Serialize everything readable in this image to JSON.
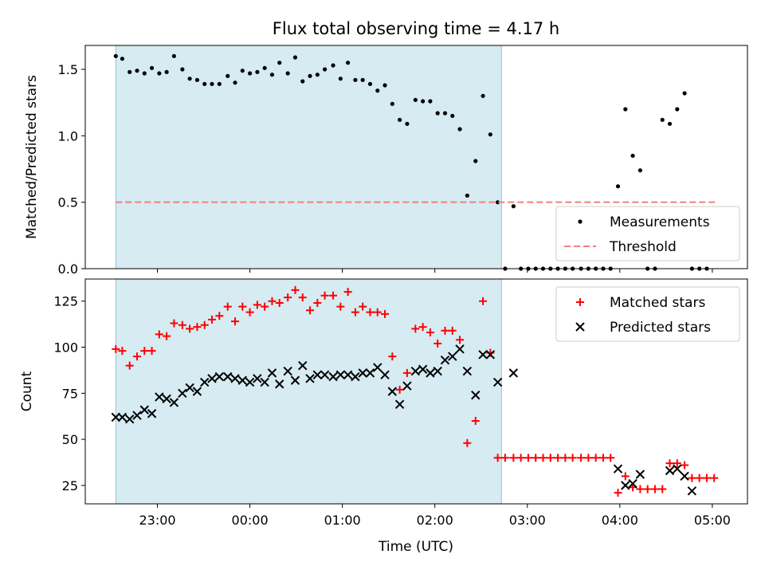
{
  "chart_data": {
    "title": "Flux total observing time = 4.17 h",
    "xlabel": "Time (UTC)",
    "x_unit": "hours after 00:00 UTC",
    "x_ticks": [
      {
        "value": -1,
        "label": "23:00"
      },
      {
        "value": 0,
        "label": "00:00"
      },
      {
        "value": 1,
        "label": "01:00"
      },
      {
        "value": 2,
        "label": "02:00"
      },
      {
        "value": 3,
        "label": "03:00"
      },
      {
        "value": 4,
        "label": "04:00"
      },
      {
        "value": 5,
        "label": "05:00"
      }
    ],
    "xlim": [
      -1.78,
      5.38
    ],
    "shaded_span": {
      "start": -1.45,
      "end": 2.72,
      "color": "#add8e6"
    },
    "panels": [
      {
        "type": "scatter",
        "ylabel": "Matched/Predicted stars",
        "ylim": [
          0,
          1.68
        ],
        "yticks": [
          {
            "value": 0,
            "label": "0.0"
          },
          {
            "value": 0.5,
            "label": "0.5"
          },
          {
            "value": 1.0,
            "label": "1.0"
          },
          {
            "value": 1.5,
            "label": "1.5"
          }
        ],
        "legend_position": "lower-right",
        "series": [
          {
            "name": "Measurements",
            "marker": "dot",
            "color": "#000000",
            "points": [
              [
                -1.45,
                1.6
              ],
              [
                -1.38,
                1.58
              ],
              [
                -1.3,
                1.48
              ],
              [
                -1.22,
                1.49
              ],
              [
                -1.14,
                1.47
              ],
              [
                -1.06,
                1.51
              ],
              [
                -0.98,
                1.47
              ],
              [
                -0.9,
                1.48
              ],
              [
                -0.82,
                1.6
              ],
              [
                -0.73,
                1.5
              ],
              [
                -0.65,
                1.43
              ],
              [
                -0.57,
                1.42
              ],
              [
                -0.49,
                1.39
              ],
              [
                -0.41,
                1.39
              ],
              [
                -0.33,
                1.39
              ],
              [
                -0.24,
                1.45
              ],
              [
                -0.16,
                1.4
              ],
              [
                -0.08,
                1.49
              ],
              [
                0.0,
                1.47
              ],
              [
                0.08,
                1.48
              ],
              [
                0.16,
                1.51
              ],
              [
                0.24,
                1.46
              ],
              [
                0.32,
                1.55
              ],
              [
                0.41,
                1.47
              ],
              [
                0.49,
                1.59
              ],
              [
                0.57,
                1.41
              ],
              [
                0.65,
                1.45
              ],
              [
                0.73,
                1.46
              ],
              [
                0.81,
                1.5
              ],
              [
                0.9,
                1.53
              ],
              [
                0.98,
                1.43
              ],
              [
                1.06,
                1.55
              ],
              [
                1.14,
                1.42
              ],
              [
                1.22,
                1.42
              ],
              [
                1.3,
                1.39
              ],
              [
                1.38,
                1.34
              ],
              [
                1.46,
                1.38
              ],
              [
                1.54,
                1.24
              ],
              [
                1.62,
                1.12
              ],
              [
                1.7,
                1.09
              ],
              [
                1.79,
                1.27
              ],
              [
                1.87,
                1.26
              ],
              [
                1.95,
                1.26
              ],
              [
                2.03,
                1.17
              ],
              [
                2.11,
                1.17
              ],
              [
                2.19,
                1.15
              ],
              [
                2.27,
                1.05
              ],
              [
                2.35,
                0.55
              ],
              [
                2.44,
                0.81
              ],
              [
                2.52,
                1.3
              ],
              [
                2.6,
                1.01
              ],
              [
                2.68,
                0.5
              ],
              [
                2.85,
                0.47
              ],
              [
                2.76,
                0.0
              ],
              [
                2.93,
                0.0
              ],
              [
                3.01,
                0.0
              ],
              [
                3.09,
                0.0
              ],
              [
                3.17,
                0.0
              ],
              [
                3.25,
                0.0
              ],
              [
                3.33,
                0.0
              ],
              [
                3.41,
                0.0
              ],
              [
                3.49,
                0.0
              ],
              [
                3.58,
                0.0
              ],
              [
                3.66,
                0.0
              ],
              [
                3.74,
                0.0
              ],
              [
                3.82,
                0.0
              ],
              [
                3.9,
                0.0
              ],
              [
                3.98,
                0.62
              ],
              [
                4.06,
                1.2
              ],
              [
                4.14,
                0.85
              ],
              [
                4.22,
                0.74
              ],
              [
                4.3,
                0.0
              ],
              [
                4.38,
                0.0
              ],
              [
                4.46,
                1.12
              ],
              [
                4.54,
                1.09
              ],
              [
                4.62,
                1.2
              ],
              [
                4.7,
                1.32
              ],
              [
                4.78,
                0.0
              ],
              [
                4.86,
                0.0
              ],
              [
                4.94,
                0.0
              ]
            ]
          },
          {
            "name": "Threshold",
            "marker": "dashed-line",
            "color": "#f08080",
            "points": [
              [
                -1.45,
                0.5
              ],
              [
                5.06,
                0.5
              ]
            ]
          }
        ]
      },
      {
        "type": "scatter",
        "ylabel": "Count",
        "ylim": [
          15,
          137
        ],
        "yticks": [
          {
            "value": 25,
            "label": "25"
          },
          {
            "value": 50,
            "label": "50"
          },
          {
            "value": 75,
            "label": "75"
          },
          {
            "value": 100,
            "label": "100"
          },
          {
            "value": 125,
            "label": "125"
          }
        ],
        "legend_position": "upper-right",
        "series": [
          {
            "name": "Matched stars",
            "marker": "plus",
            "color": "#ff0000",
            "points": [
              [
                -1.45,
                99
              ],
              [
                -1.38,
                98
              ],
              [
                -1.3,
                90
              ],
              [
                -1.22,
                95
              ],
              [
                -1.14,
                98
              ],
              [
                -1.06,
                98
              ],
              [
                -0.98,
                107
              ],
              [
                -0.9,
                106
              ],
              [
                -0.82,
                113
              ],
              [
                -0.73,
                112
              ],
              [
                -0.65,
                110
              ],
              [
                -0.57,
                111
              ],
              [
                -0.49,
                112
              ],
              [
                -0.41,
                115
              ],
              [
                -0.33,
                117
              ],
              [
                -0.24,
                122
              ],
              [
                -0.16,
                114
              ],
              [
                -0.08,
                122
              ],
              [
                0.0,
                119
              ],
              [
                0.08,
                123
              ],
              [
                0.16,
                122
              ],
              [
                0.24,
                125
              ],
              [
                0.32,
                124
              ],
              [
                0.41,
                127
              ],
              [
                0.49,
                131
              ],
              [
                0.57,
                127
              ],
              [
                0.65,
                120
              ],
              [
                0.73,
                124
              ],
              [
                0.81,
                128
              ],
              [
                0.9,
                128
              ],
              [
                0.98,
                122
              ],
              [
                1.06,
                130
              ],
              [
                1.14,
                119
              ],
              [
                1.22,
                122
              ],
              [
                1.3,
                119
              ],
              [
                1.38,
                119
              ],
              [
                1.46,
                118
              ],
              [
                1.54,
                95
              ],
              [
                1.62,
                77
              ],
              [
                1.7,
                86
              ],
              [
                1.79,
                110
              ],
              [
                1.87,
                111
              ],
              [
                1.95,
                108
              ],
              [
                2.03,
                102
              ],
              [
                2.11,
                109
              ],
              [
                2.19,
                109
              ],
              [
                2.27,
                104
              ],
              [
                2.35,
                48
              ],
              [
                2.44,
                60
              ],
              [
                2.52,
                125
              ],
              [
                2.6,
                97
              ],
              [
                2.68,
                40
              ],
              [
                2.76,
                40
              ],
              [
                2.85,
                40
              ],
              [
                2.93,
                40
              ],
              [
                3.01,
                40
              ],
              [
                3.09,
                40
              ],
              [
                3.17,
                40
              ],
              [
                3.25,
                40
              ],
              [
                3.33,
                40
              ],
              [
                3.41,
                40
              ],
              [
                3.49,
                40
              ],
              [
                3.58,
                40
              ],
              [
                3.66,
                40
              ],
              [
                3.74,
                40
              ],
              [
                3.82,
                40
              ],
              [
                3.9,
                40
              ],
              [
                3.98,
                21
              ],
              [
                4.06,
                30
              ],
              [
                4.14,
                24
              ],
              [
                4.22,
                23
              ],
              [
                4.3,
                23
              ],
              [
                4.38,
                23
              ],
              [
                4.46,
                23
              ],
              [
                4.54,
                37
              ],
              [
                4.62,
                37
              ],
              [
                4.7,
                36
              ],
              [
                4.78,
                29
              ],
              [
                4.86,
                29
              ],
              [
                4.94,
                29
              ],
              [
                5.02,
                29
              ]
            ]
          },
          {
            "name": "Predicted stars",
            "marker": "x",
            "color": "#000000",
            "points": [
              [
                -1.45,
                62
              ],
              [
                -1.38,
                62
              ],
              [
                -1.3,
                61
              ],
              [
                -1.22,
                63
              ],
              [
                -1.14,
                66
              ],
              [
                -1.06,
                64
              ],
              [
                -0.98,
                73
              ],
              [
                -0.9,
                72
              ],
              [
                -0.82,
                70
              ],
              [
                -0.73,
                75
              ],
              [
                -0.65,
                78
              ],
              [
                -0.57,
                76
              ],
              [
                -0.49,
                81
              ],
              [
                -0.41,
                83
              ],
              [
                -0.33,
                84
              ],
              [
                -0.24,
                84
              ],
              [
                -0.16,
                83
              ],
              [
                -0.08,
                82
              ],
              [
                0.0,
                81
              ],
              [
                0.08,
                83
              ],
              [
                0.16,
                81
              ],
              [
                0.24,
                86
              ],
              [
                0.32,
                80
              ],
              [
                0.41,
                87
              ],
              [
                0.49,
                82
              ],
              [
                0.57,
                90
              ],
              [
                0.65,
                83
              ],
              [
                0.73,
                85
              ],
              [
                0.81,
                85
              ],
              [
                0.9,
                84
              ],
              [
                0.98,
                85
              ],
              [
                1.06,
                85
              ],
              [
                1.14,
                84
              ],
              [
                1.22,
                86
              ],
              [
                1.3,
                86
              ],
              [
                1.38,
                89
              ],
              [
                1.46,
                85
              ],
              [
                1.54,
                76
              ],
              [
                1.62,
                69
              ],
              [
                1.7,
                79
              ],
              [
                1.79,
                87
              ],
              [
                1.87,
                88
              ],
              [
                1.95,
                86
              ],
              [
                2.03,
                87
              ],
              [
                2.11,
                93
              ],
              [
                2.19,
                95
              ],
              [
                2.27,
                99
              ],
              [
                2.35,
                87
              ],
              [
                2.44,
                74
              ],
              [
                2.52,
                96
              ],
              [
                2.6,
                96
              ],
              [
                2.68,
                81
              ],
              [
                2.85,
                86
              ],
              [
                3.98,
                34
              ],
              [
                4.06,
                25
              ],
              [
                4.14,
                26
              ],
              [
                4.22,
                31
              ],
              [
                4.54,
                33
              ],
              [
                4.62,
                34
              ],
              [
                4.7,
                30
              ],
              [
                4.78,
                22
              ]
            ]
          }
        ]
      }
    ]
  }
}
